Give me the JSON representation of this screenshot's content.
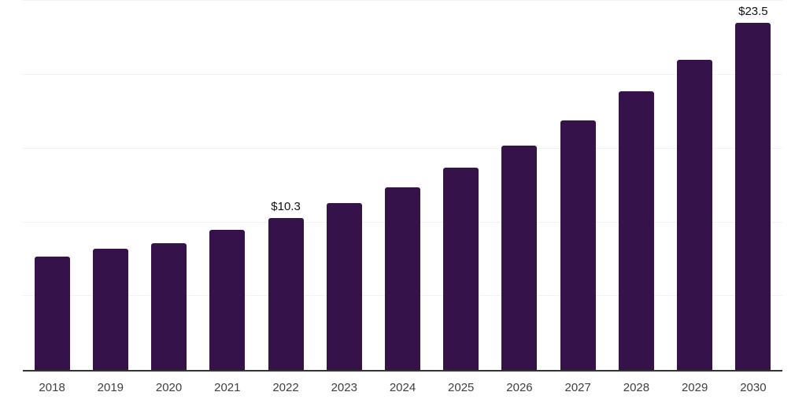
{
  "chart_data": {
    "type": "bar",
    "categories": [
      "2018",
      "2019",
      "2020",
      "2021",
      "2022",
      "2023",
      "2024",
      "2025",
      "2026",
      "2027",
      "2028",
      "2029",
      "2030"
    ],
    "values": [
      7.7,
      8.2,
      8.6,
      9.5,
      10.3,
      11.3,
      12.4,
      13.7,
      15.2,
      16.9,
      18.9,
      21.0,
      23.5
    ],
    "data_labels": [
      null,
      null,
      null,
      null,
      "$10.3",
      null,
      null,
      null,
      null,
      null,
      null,
      null,
      "$23.5"
    ],
    "ylim": [
      0,
      25
    ],
    "gridline_values": [
      5,
      10,
      15,
      20,
      25
    ],
    "grid": true,
    "legend": false,
    "xlabel": "",
    "ylabel": "",
    "colors": {
      "bar": "#36124B",
      "axis_line": "#333333",
      "gridline": "#f2f2f2",
      "tick_label": "#3f3f3f",
      "data_label": "#111111",
      "background": "#ffffff"
    }
  }
}
